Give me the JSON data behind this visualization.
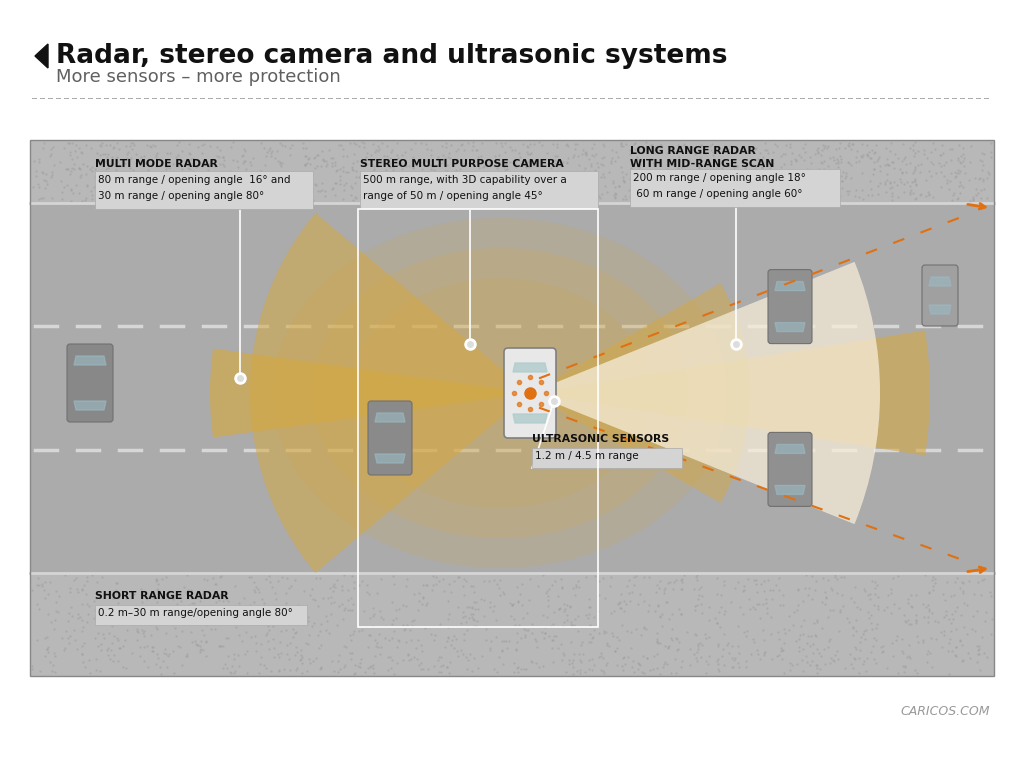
{
  "title": "Radar, stereo camera and ultrasonic systems",
  "subtitle": "More sensors – more protection",
  "bg_color": "#ffffff",
  "beam_gold": "#d4a843",
  "beam_white": "#ffffff",
  "accent_orange": "#e07010",
  "text_dark": "#111111",
  "label_bg": "#d6d6d6",
  "road_color": "#b2b2b2",
  "road_bg": "#c4c4c4",
  "shoulder_color": "#b8b8b8",
  "dot_color": "#a8a8a8",
  "watermark": "CARICOS.COM",
  "sensors": {
    "multi_mode_radar": {
      "title": "MULTI MODE RADAR",
      "line1": "80 m range / opening angle  16° and",
      "line2": "30 m range / opening angle 80°"
    },
    "stereo_camera": {
      "title": "STEREO MULTI PURPOSE CAMERA",
      "line1": "500 m range, with 3D capability over a",
      "line2": "range of 50 m / opening angle 45°"
    },
    "long_range_radar": {
      "title1": "LONG RANGE RADAR",
      "title2": "WITH MID-RANGE SCAN",
      "line1": "200 m range / opening angle 18°",
      "line2": " 60 m range / opening angle 60°"
    },
    "ultrasonic": {
      "title": "ULTRASONIC SENSORS",
      "line1": "1.2 m / 4.5 m range"
    },
    "short_range_radar": {
      "title": "SHORT RANGE RADAR",
      "line1": "0.2 m–30 m range/opening angle 80°"
    }
  }
}
